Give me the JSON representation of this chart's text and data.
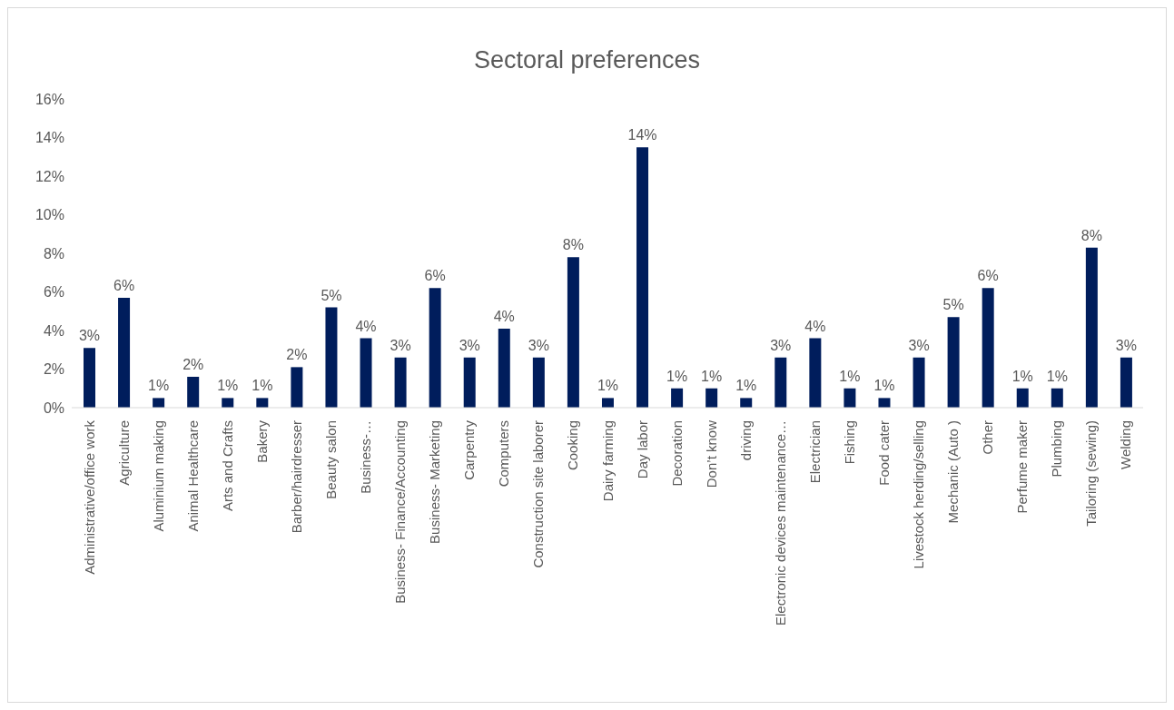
{
  "chart_data": {
    "type": "bar",
    "title": "Sectoral preferences",
    "categories": [
      "Administrative/office work",
      "Agriculture",
      "Aluminium making",
      "Animal Healthcare",
      "Arts and Crafts",
      "Bakery",
      "Barber/hairdresser",
      "Beauty salon",
      "Business-…",
      "Business- Finance/Accounting",
      "Business- Marketing",
      "Carpentry",
      "Computers",
      "Construction site laborer",
      "Cooking",
      "Dairy farming",
      "Day labor",
      "Decoration",
      "Don’t know",
      "driving",
      "Electronic devices maintenance…",
      "Electrician",
      "Fishing",
      "Food cater",
      "Livestock herding/selling",
      "Mechanic (Auto )",
      "Other",
      "Perfume maker",
      "Plumbing",
      "Tailoring (sewing)",
      "Welding"
    ],
    "values": [
      3.1,
      5.7,
      0.5,
      1.6,
      0.5,
      0.5,
      2.1,
      5.2,
      3.6,
      2.6,
      6.2,
      2.6,
      4.1,
      2.6,
      7.8,
      0.5,
      13.5,
      1.0,
      1.0,
      0.5,
      2.6,
      3.6,
      1.0,
      0.5,
      2.6,
      4.7,
      6.2,
      1.0,
      1.0,
      8.3,
      2.6
    ],
    "value_labels": [
      "3%",
      "6%",
      "1%",
      "2%",
      "1%",
      "1%",
      "2%",
      "5%",
      "4%",
      "3%",
      "6%",
      "3%",
      "4%",
      "3%",
      "8%",
      "1%",
      "14%",
      "1%",
      "1%",
      "1%",
      "3%",
      "4%",
      "1%",
      "1%",
      "3%",
      "5%",
      "6%",
      "1%",
      "1%",
      "8%",
      "3%"
    ],
    "color": "#001d5c",
    "ylim": [
      0,
      16
    ],
    "yticks": [
      {
        "value": 0,
        "label": "0%"
      },
      {
        "value": 2,
        "label": "2%"
      },
      {
        "value": 4,
        "label": "4%"
      },
      {
        "value": 6,
        "label": "6%"
      },
      {
        "value": 8,
        "label": "8%"
      },
      {
        "value": 10,
        "label": "10%"
      },
      {
        "value": 12,
        "label": "12%"
      },
      {
        "value": 14,
        "label": "14%"
      },
      {
        "value": 16,
        "label": "16%"
      }
    ],
    "grid": false
  }
}
